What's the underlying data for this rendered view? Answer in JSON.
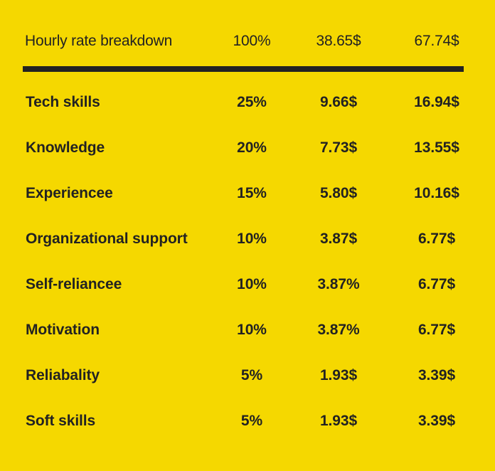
{
  "table": {
    "header": {
      "label": "Hourly rate breakdown",
      "percent": "100%",
      "rate_a": "38.65$",
      "rate_b": "67.74$"
    },
    "rows": [
      {
        "label": "Tech skills",
        "percent": "25%",
        "rate_a": "9.66$",
        "rate_b": "16.94$"
      },
      {
        "label": "Knowledge",
        "percent": "20%",
        "rate_a": "7.73$",
        "rate_b": "13.55$"
      },
      {
        "label": "Experiencee",
        "percent": "15%",
        "rate_a": "5.80$",
        "rate_b": "10.16$"
      },
      {
        "label": "Organizational support",
        "percent": "10%",
        "rate_a": "3.87$",
        "rate_b": "6.77$"
      },
      {
        "label": "Self-reliancee",
        "percent": "10%",
        "rate_a": "3.87%",
        "rate_b": "6.77$"
      },
      {
        "label": "Motivation",
        "percent": "10%",
        "rate_a": "3.87%",
        "rate_b": "6.77$"
      },
      {
        "label": "Reliabality",
        "percent": "5%",
        "rate_a": "1.93$",
        "rate_b": "3.39$"
      },
      {
        "label": "Soft skills",
        "percent": "5%",
        "rate_a": "1.93$",
        "rate_b": "3.39$"
      }
    ]
  },
  "colors": {
    "background": "#F5D800",
    "text": "#222222",
    "divider": "#222222"
  }
}
